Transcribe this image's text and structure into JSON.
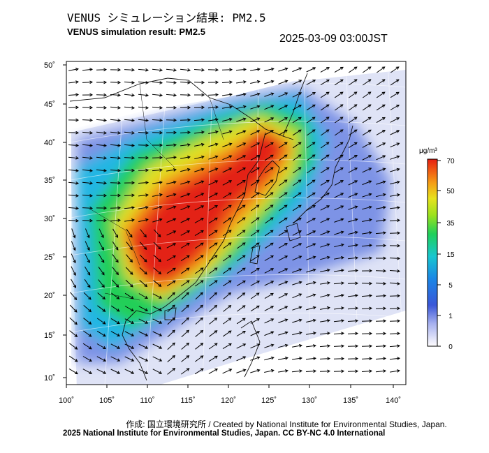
{
  "header": {
    "title_jp": "VENUS シミュレーション結果: PM2.5",
    "title_en": "VENUS simulation result: PM2.5",
    "timestamp": "2025-03-09 03:00JST"
  },
  "map": {
    "lat_ticks": [
      "50˚",
      "45˚",
      "40˚",
      "35˚",
      "30˚",
      "25˚",
      "20˚",
      "15˚",
      "10˚"
    ],
    "lon_ticks": [
      "100˚",
      "105˚",
      "110˚",
      "115˚",
      "120˚",
      "125˚",
      "130˚",
      "135˚",
      "140˚"
    ],
    "lon_range": [
      100,
      141
    ],
    "lat_range": [
      9,
      50
    ],
    "wind_direction": "generally westerly-to-easterly flow"
  },
  "colorbar": {
    "unit": "μg/m³",
    "tick_labels": [
      "70",
      "50",
      "35",
      "15",
      "5",
      "1",
      "0"
    ],
    "colors": [
      "#fffdfd",
      "#3a57d8",
      "#18a8e3",
      "#1fd05a",
      "#e7e21e",
      "#f37a13",
      "#e51e12"
    ]
  },
  "footer": {
    "credit": "作成: 国立環境研究所 / Created by National Institute for Environmental Studies, Japan.",
    "copyright": "2025 National Institute for Environmental Studies, Japan. CC BY-NC 4.0 International"
  }
}
